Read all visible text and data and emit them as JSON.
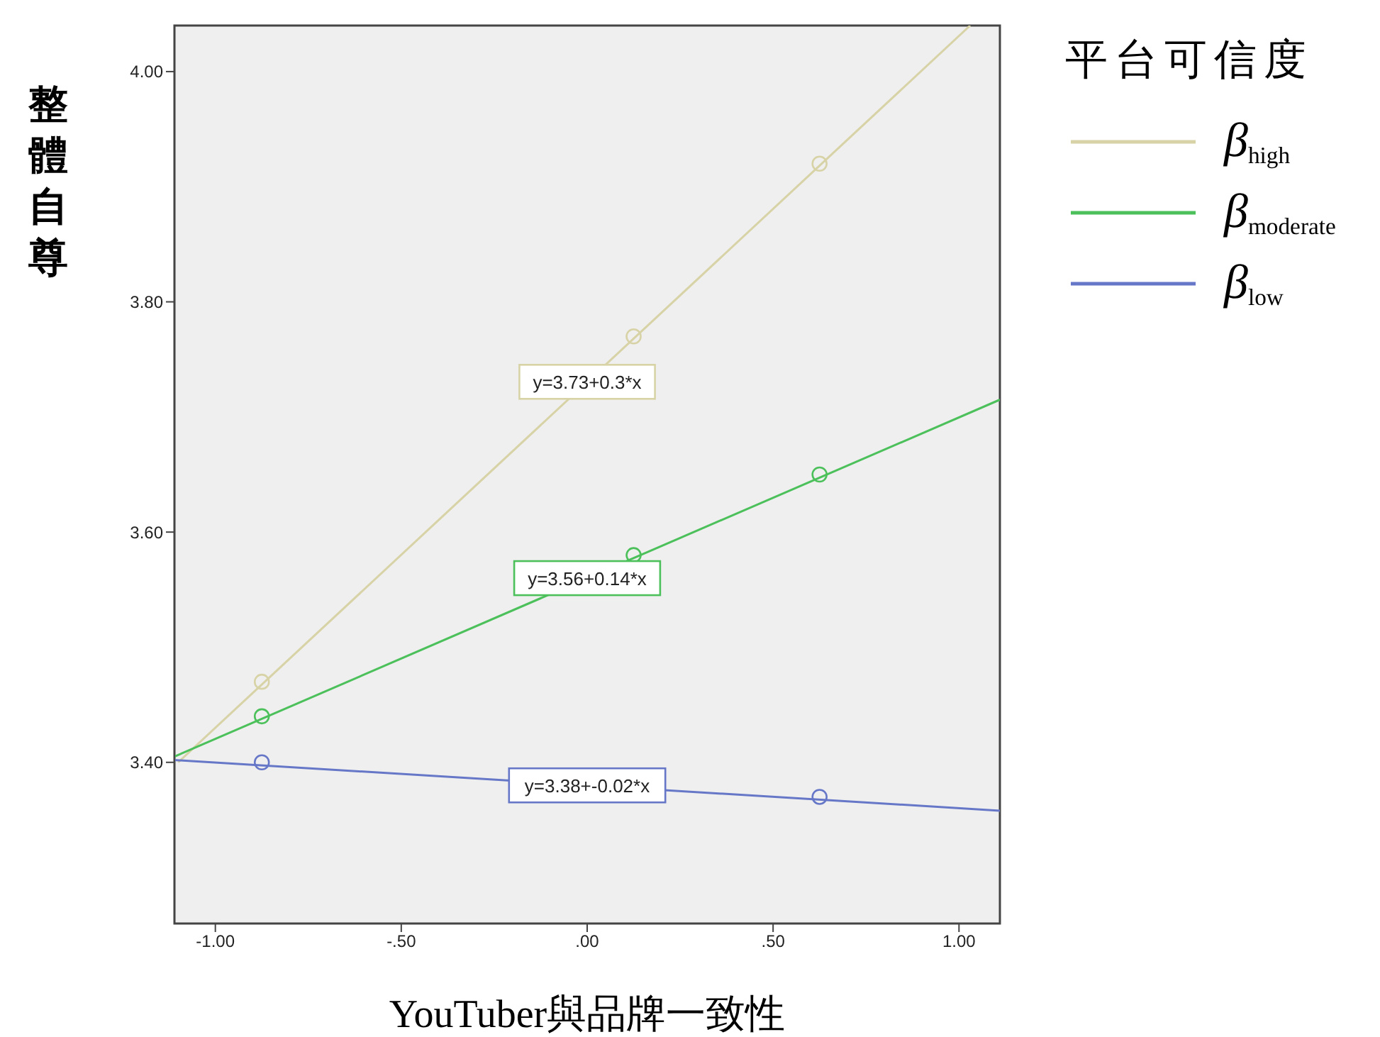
{
  "chart_data": {
    "type": "scatter",
    "xlabel": "YouTuber與品牌一致性",
    "ylabel": "整體自尊",
    "legend_title": "平台可信度",
    "legend": "top right",
    "xlim": [
      -1.11,
      1.11
    ],
    "ylim": [
      3.26,
      4.04
    ],
    "xticks": [
      {
        "value": -1,
        "label": "-1.00"
      },
      {
        "value": -0.5,
        "label": "-.50"
      },
      {
        "value": 0,
        "label": ".00"
      },
      {
        "value": 0.5,
        "label": ".50"
      },
      {
        "value": 1,
        "label": "1.00"
      }
    ],
    "yticks": [
      {
        "value": 3.4,
        "label": "3.40"
      },
      {
        "value": 3.6,
        "label": "3.60"
      },
      {
        "value": 3.8,
        "label": "3.80"
      },
      {
        "value": 4,
        "label": "4.00"
      }
    ],
    "series": [
      {
        "name": "β$_{high}$",
        "type": "line",
        "marker": "none",
        "color": "#d8d3a6",
        "x": [
          -1.1,
          1.03
        ],
        "values": [
          3.4,
          4.04
        ]
      },
      {
        "name": "β$_{moderate}$",
        "type": "line",
        "marker": "none",
        "color": "#4cc05a",
        "x": [
          -1.11,
          1.11
        ],
        "values": [
          3.405,
          3.715
        ]
      },
      {
        "name": "β$_{low}$",
        "type": "line",
        "marker": "none",
        "color": "#6677c8",
        "x": [
          -1.11,
          1.11
        ],
        "values": [
          3.402,
          3.358
        ]
      },
      {
        "marker": "circle",
        "color": "#d8d3a6",
        "x": [
          -0.875,
          0.125,
          0.625
        ],
        "values": [
          3.47,
          3.77,
          3.92
        ]
      },
      {
        "marker": "circle",
        "color": "#4cc05a",
        "x": [
          -0.875,
          0.125,
          0.625
        ],
        "values": [
          3.44,
          3.58,
          3.65
        ]
      },
      {
        "marker": "circle",
        "color": "#6677c8",
        "x": [
          -0.875,
          0.625
        ],
        "values": [
          3.4,
          3.37
        ]
      }
    ],
    "annotations": [
      "y=3.73+0.3*x",
      "y=3.56+0.14*x",
      "y=3.38+-0.02*x"
    ]
  }
}
